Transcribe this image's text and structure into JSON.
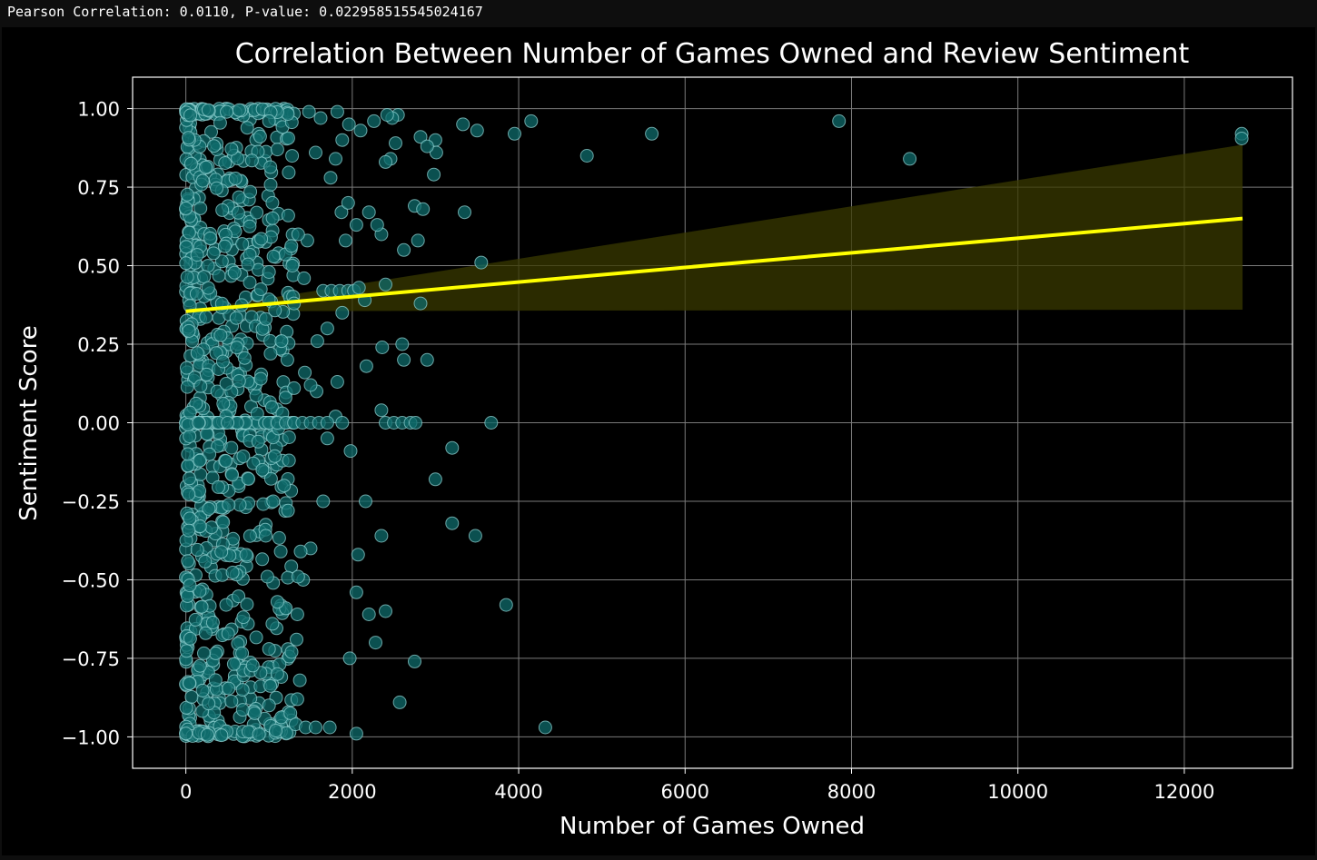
{
  "output_text": "Pearson Correlation: 0.0110, P-value: 0.022958515545024167",
  "chart_data": {
    "type": "scatter",
    "title": "Correlation Between Number of Games Owned and Review Sentiment",
    "xlabel": "Number of Games Owned",
    "ylabel": "Sentiment Score",
    "xlim": [
      -640,
      13300
    ],
    "ylim": [
      -1.1,
      1.1
    ],
    "xticks": [
      0,
      2000,
      4000,
      6000,
      8000,
      10000,
      12000
    ],
    "xtick_labels": [
      "0",
      "2000",
      "4000",
      "6000",
      "8000",
      "10000",
      "12000"
    ],
    "yticks": [
      1.0,
      0.75,
      0.5,
      0.25,
      0.0,
      -0.25,
      -0.5,
      -0.75,
      -1.0
    ],
    "ytick_labels": [
      "1.00",
      "0.75",
      "0.50",
      "0.25",
      "0.00",
      "−0.25",
      "−0.50",
      "−0.75",
      "−1.00"
    ],
    "grid": true,
    "colors": {
      "points_fill": "#0f6b6b",
      "points_edge": "#8fd0d0",
      "regression_line": "#ffff00",
      "confidence_band": "#3a3a00",
      "grid": "#7a7a7a",
      "axes": "#ffffff"
    },
    "regression": {
      "x": [
        0,
        12700
      ],
      "y": [
        0.355,
        0.65
      ],
      "ci_upper": [
        0.355,
        0.885
      ],
      "ci_lower": [
        0.355,
        0.36
      ]
    },
    "points": [
      {
        "x": 12690,
        "y": 0.92
      },
      {
        "x": 12690,
        "y": 0.905
      },
      {
        "x": 8700,
        "y": 0.84
      },
      {
        "x": 7850,
        "y": 0.96
      },
      {
        "x": 5600,
        "y": 0.92
      },
      {
        "x": 4820,
        "y": 0.85
      },
      {
        "x": 4150,
        "y": 0.96
      },
      {
        "x": 3950,
        "y": 0.92
      },
      {
        "x": 3500,
        "y": 0.93
      },
      {
        "x": 3330,
        "y": 0.95
      },
      {
        "x": 3350,
        "y": 0.67
      },
      {
        "x": 3550,
        "y": 0.51
      },
      {
        "x": 3000,
        "y": 0.9
      },
      {
        "x": 3010,
        "y": 0.86
      },
      {
        "x": 2980,
        "y": 0.79
      },
      {
        "x": 2820,
        "y": 0.91
      },
      {
        "x": 2900,
        "y": 0.88
      },
      {
        "x": 2550,
        "y": 0.98
      },
      {
        "x": 2480,
        "y": 0.97
      },
      {
        "x": 2420,
        "y": 0.98
      },
      {
        "x": 2520,
        "y": 0.89
      },
      {
        "x": 2460,
        "y": 0.84
      },
      {
        "x": 2400,
        "y": 0.83
      },
      {
        "x": 2750,
        "y": 0.69
      },
      {
        "x": 2850,
        "y": 0.68
      },
      {
        "x": 2790,
        "y": 0.58
      },
      {
        "x": 2620,
        "y": 0.55
      },
      {
        "x": 2820,
        "y": 0.38
      },
      {
        "x": 2400,
        "y": 0.44
      },
      {
        "x": 2200,
        "y": 0.67
      },
      {
        "x": 2100,
        "y": 0.93
      },
      {
        "x": 2260,
        "y": 0.96
      },
      {
        "x": 2350,
        "y": 0.6
      },
      {
        "x": 2300,
        "y": 0.63
      },
      {
        "x": 2050,
        "y": 0.63
      },
      {
        "x": 2150,
        "y": 0.39
      },
      {
        "x": 2360,
        "y": 0.24
      },
      {
        "x": 2600,
        "y": 0.25
      },
      {
        "x": 2620,
        "y": 0.2
      },
      {
        "x": 2900,
        "y": 0.2
      },
      {
        "x": 2170,
        "y": 0.18
      },
      {
        "x": 2350,
        "y": 0.04
      },
      {
        "x": 2400,
        "y": 0.0
      },
      {
        "x": 2500,
        "y": 0.0
      },
      {
        "x": 2600,
        "y": 0.0
      },
      {
        "x": 2700,
        "y": 0.0
      },
      {
        "x": 2760,
        "y": 0.0
      },
      {
        "x": 3670,
        "y": 0.0
      },
      {
        "x": 3200,
        "y": -0.08
      },
      {
        "x": 3000,
        "y": -0.18
      },
      {
        "x": 3200,
        "y": -0.32
      },
      {
        "x": 3480,
        "y": -0.36
      },
      {
        "x": 2350,
        "y": -0.36
      },
      {
        "x": 2160,
        "y": -0.25
      },
      {
        "x": 2070,
        "y": -0.42
      },
      {
        "x": 2050,
        "y": -0.54
      },
      {
        "x": 2200,
        "y": -0.61
      },
      {
        "x": 2400,
        "y": -0.6
      },
      {
        "x": 3850,
        "y": -0.58
      },
      {
        "x": 2280,
        "y": -0.7
      },
      {
        "x": 2750,
        "y": -0.76
      },
      {
        "x": 1970,
        "y": -0.75
      },
      {
        "x": 2570,
        "y": -0.89
      },
      {
        "x": 4320,
        "y": -0.97
      },
      {
        "x": 2050,
        "y": -0.99
      },
      {
        "x": 1980,
        "y": -0.09
      },
      {
        "x": 1700,
        "y": -0.05
      },
      {
        "x": 1650,
        "y": -0.25
      },
      {
        "x": 1500,
        "y": -0.4
      },
      {
        "x": 1380,
        "y": -0.41
      },
      {
        "x": 1410,
        "y": -0.5
      },
      {
        "x": 1350,
        "y": -0.49
      },
      {
        "x": 1340,
        "y": -0.61
      },
      {
        "x": 1330,
        "y": -0.69
      },
      {
        "x": 1270,
        "y": -0.73
      },
      {
        "x": 1370,
        "y": -0.82
      },
      {
        "x": 1340,
        "y": -0.88
      },
      {
        "x": 1320,
        "y": -0.96
      },
      {
        "x": 1440,
        "y": -0.97
      },
      {
        "x": 1560,
        "y": -0.97
      },
      {
        "x": 1730,
        "y": -0.97
      },
      {
        "x": 1650,
        "y": 0.42
      },
      {
        "x": 1750,
        "y": 0.42
      },
      {
        "x": 1850,
        "y": 0.42
      },
      {
        "x": 1950,
        "y": 0.42
      },
      {
        "x": 2020,
        "y": 0.42
      },
      {
        "x": 2080,
        "y": 0.43
      },
      {
        "x": 1880,
        "y": 0.35
      },
      {
        "x": 1700,
        "y": 0.3
      },
      {
        "x": 1820,
        "y": 0.13
      },
      {
        "x": 1570,
        "y": 0.1
      },
      {
        "x": 1500,
        "y": 0.12
      },
      {
        "x": 1430,
        "y": 0.16
      },
      {
        "x": 1580,
        "y": 0.26
      },
      {
        "x": 1800,
        "y": 0.02
      },
      {
        "x": 1880,
        "y": 0.0
      },
      {
        "x": 1920,
        "y": 0.58
      },
      {
        "x": 1870,
        "y": 0.67
      },
      {
        "x": 1950,
        "y": 0.7
      },
      {
        "x": 1880,
        "y": 0.9
      },
      {
        "x": 1820,
        "y": 0.99
      },
      {
        "x": 1960,
        "y": 0.95
      },
      {
        "x": 1800,
        "y": 0.84
      },
      {
        "x": 1740,
        "y": 0.78
      },
      {
        "x": 1560,
        "y": 0.86
      },
      {
        "x": 1620,
        "y": 0.97
      },
      {
        "x": 1480,
        "y": 0.99
      },
      {
        "x": 1460,
        "y": 0.58
      },
      {
        "x": 1350,
        "y": 0.6
      },
      {
        "x": 1280,
        "y": 0.5
      },
      {
        "x": 1420,
        "y": 0.46
      },
      {
        "x": 1300,
        "y": 0.38
      },
      {
        "x": 1150,
        "y": 0.26
      },
      {
        "x": 1220,
        "y": 0.2
      },
      {
        "x": 1300,
        "y": 0.11
      },
      {
        "x": 1160,
        "y": 0.03
      },
      {
        "x": 1000,
        "y": 0.0
      },
      {
        "x": 1100,
        "y": 0.0
      },
      {
        "x": 1200,
        "y": 0.0
      },
      {
        "x": 1300,
        "y": 0.0
      },
      {
        "x": 1400,
        "y": 0.0
      },
      {
        "x": 1500,
        "y": 0.0
      },
      {
        "x": 1600,
        "y": 0.0
      },
      {
        "x": 1700,
        "y": 0.0
      },
      {
        "x": 1240,
        "y": -0.12
      },
      {
        "x": 1180,
        "y": -0.2
      },
      {
        "x": 1050,
        "y": -0.25
      },
      {
        "x": 1140,
        "y": -0.41
      },
      {
        "x": 1100,
        "y": -0.57
      },
      {
        "x": 1040,
        "y": -0.64
      },
      {
        "x": 1000,
        "y": -0.72
      },
      {
        "x": 1100,
        "y": -0.8
      },
      {
        "x": 1000,
        "y": -0.9
      },
      {
        "x": 1080,
        "y": -0.98
      },
      {
        "x": 980,
        "y": -0.49
      },
      {
        "x": 960,
        "y": -0.36
      },
      {
        "x": 920,
        "y": -0.15
      },
      {
        "x": 870,
        "y": -0.06
      },
      {
        "x": 900,
        "y": 0.14
      },
      {
        "x": 960,
        "y": 0.33
      },
      {
        "x": 1000,
        "y": 0.48
      },
      {
        "x": 1040,
        "y": 0.7
      },
      {
        "x": 1100,
        "y": 0.87
      },
      {
        "x": 1000,
        "y": 0.96
      }
    ],
    "dense_region": {
      "x_range": [
        0,
        1300
      ],
      "y_range": [
        -1.0,
        1.0
      ],
      "count": 900
    }
  }
}
